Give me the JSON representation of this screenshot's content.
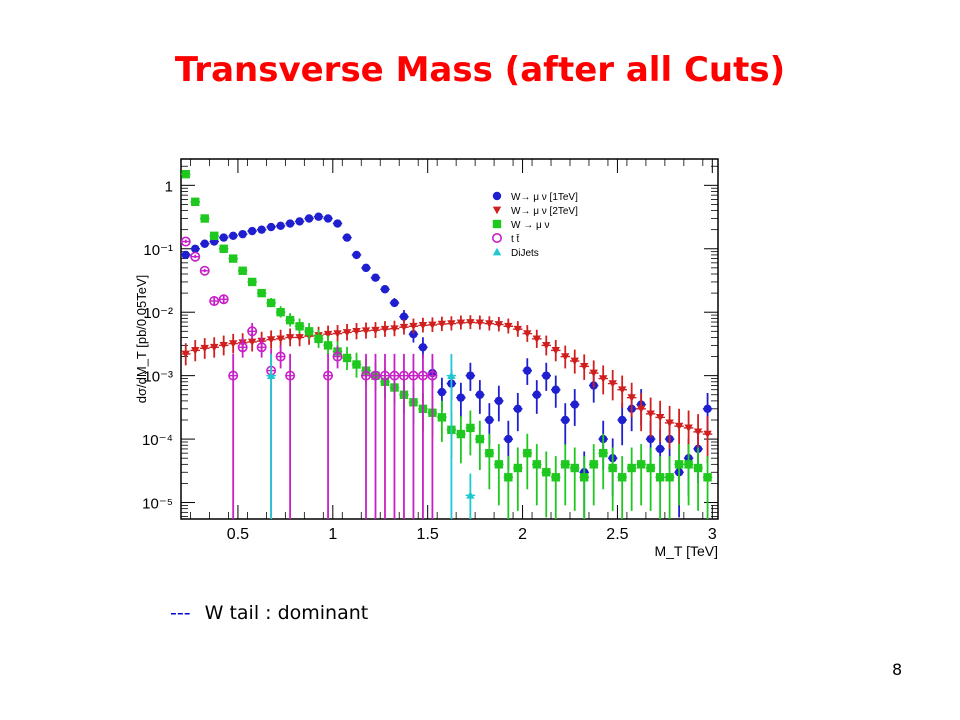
{
  "slide": {
    "title": "Transverse Mass (after all Cuts)",
    "footnote_dashes": "---",
    "footnote_text": "W tail : dominant",
    "page_number": "8"
  },
  "chart_data": {
    "type": "scatter",
    "title": "",
    "xlabel": "M_T [TeV]",
    "ylabel": "dσ/dM_T [pb/0.05TeV]",
    "xlim": [
      0.2,
      3.03
    ],
    "ylim": [
      5.5e-06,
      2.6
    ],
    "yscale": "log",
    "xticks": [
      0.5,
      1,
      1.5,
      2,
      2.5,
      3
    ],
    "xtick_labels": [
      "0.5",
      "1",
      "1.5",
      "2",
      "2.5",
      "3"
    ],
    "yticks": [
      1,
      0.1,
      0.01,
      0.001,
      0.0001,
      1e-05
    ],
    "ytick_labels": [
      "1",
      "10⁻¹",
      "10⁻²",
      "10⁻³",
      "10⁻⁴",
      "10⁻⁵"
    ],
    "grid": false,
    "legend_position": "top-right",
    "series": [
      {
        "name": "W→ μ ν [1TeV]",
        "legend_label": "W→ μ ν [1TeV]",
        "color": "#1f1fd0",
        "marker": "circle",
        "x": [
          0.225,
          0.275,
          0.325,
          0.375,
          0.425,
          0.475,
          0.525,
          0.575,
          0.625,
          0.675,
          0.725,
          0.775,
          0.825,
          0.875,
          0.925,
          0.975,
          1.025,
          1.075,
          1.125,
          1.175,
          1.225,
          1.275,
          1.325,
          1.375,
          1.425,
          1.475,
          1.525,
          1.575,
          1.625,
          1.675,
          1.725,
          1.775,
          1.825,
          1.875,
          1.925,
          1.975,
          2.025,
          2.075,
          2.125,
          2.175,
          2.225,
          2.275,
          2.325,
          2.375,
          2.425,
          2.475,
          2.525,
          2.575,
          2.625,
          2.675,
          2.725,
          2.775,
          2.825,
          2.875,
          2.925,
          2.975
        ],
        "y": [
          0.08,
          0.1,
          0.12,
          0.13,
          0.15,
          0.16,
          0.17,
          0.19,
          0.2,
          0.22,
          0.23,
          0.25,
          0.27,
          0.3,
          0.32,
          0.3,
          0.25,
          0.15,
          0.08,
          0.05,
          0.035,
          0.023,
          0.014,
          0.0085,
          0.0045,
          0.0028,
          0.0011,
          0.00055,
          0.00075,
          0.00045,
          0.001,
          0.0005,
          0.0002,
          0.0004,
          0.0001,
          0.0003,
          0.0012,
          0.0005,
          0.001,
          0.0006,
          0.0002,
          0.00035,
          3e-05,
          0.0007,
          0.0001,
          5e-05,
          0.0002,
          0.0003,
          0.00035,
          0.0001,
          7e-05,
          0.0001,
          3e-05,
          5e-05,
          7e-05,
          0.0003
        ]
      },
      {
        "name": "W→ μ ν [2TeV]",
        "legend_label": "W→ μ ν [2TeV]",
        "color": "#d01f1f",
        "marker": "triangle-down",
        "x": [
          0.225,
          0.275,
          0.325,
          0.375,
          0.425,
          0.475,
          0.525,
          0.575,
          0.625,
          0.675,
          0.725,
          0.775,
          0.825,
          0.875,
          0.925,
          0.975,
          1.025,
          1.075,
          1.125,
          1.175,
          1.225,
          1.275,
          1.325,
          1.375,
          1.425,
          1.475,
          1.525,
          1.575,
          1.625,
          1.675,
          1.725,
          1.775,
          1.825,
          1.875,
          1.925,
          1.975,
          2.025,
          2.075,
          2.125,
          2.175,
          2.225,
          2.275,
          2.325,
          2.375,
          2.425,
          2.475,
          2.525,
          2.575,
          2.625,
          2.675,
          2.725,
          2.775,
          2.825,
          2.875,
          2.925,
          2.975
        ],
        "y": [
          0.0022,
          0.0025,
          0.0027,
          0.0028,
          0.003,
          0.0032,
          0.0033,
          0.0034,
          0.0035,
          0.0037,
          0.0038,
          0.004,
          0.004,
          0.0042,
          0.0043,
          0.0045,
          0.0046,
          0.0048,
          0.005,
          0.0051,
          0.0052,
          0.0054,
          0.0055,
          0.0058,
          0.006,
          0.0062,
          0.0063,
          0.0065,
          0.0066,
          0.0068,
          0.0069,
          0.0068,
          0.0066,
          0.0064,
          0.006,
          0.0054,
          0.0046,
          0.0038,
          0.003,
          0.0025,
          0.002,
          0.0017,
          0.0014,
          0.0011,
          0.0009,
          0.00075,
          0.0006,
          0.00045,
          0.0003,
          0.00025,
          0.00022,
          0.00018,
          0.00016,
          0.00015,
          0.00013,
          0.00012
        ]
      },
      {
        "name": "W → μ ν",
        "legend_label": "W → μ ν",
        "color": "#1fc81f",
        "marker": "square",
        "x": [
          0.225,
          0.275,
          0.325,
          0.375,
          0.425,
          0.475,
          0.525,
          0.575,
          0.625,
          0.675,
          0.725,
          0.775,
          0.825,
          0.875,
          0.925,
          0.975,
          1.025,
          1.075,
          1.125,
          1.175,
          1.225,
          1.275,
          1.325,
          1.375,
          1.425,
          1.475,
          1.525,
          1.575,
          1.625,
          1.675,
          1.725,
          1.775,
          1.825,
          1.875,
          1.925,
          1.975,
          2.025,
          2.075,
          2.125,
          2.175,
          2.225,
          2.275,
          2.325,
          2.375,
          2.425,
          2.475,
          2.525,
          2.575,
          2.625,
          2.675,
          2.725,
          2.775,
          2.825,
          2.875,
          2.925,
          2.975
        ],
        "y": [
          1.5,
          0.55,
          0.3,
          0.16,
          0.1,
          0.07,
          0.045,
          0.03,
          0.02,
          0.014,
          0.01,
          0.0075,
          0.006,
          0.005,
          0.0038,
          0.003,
          0.0024,
          0.0019,
          0.0015,
          0.0012,
          0.001,
          0.0008,
          0.00065,
          0.0005,
          0.00038,
          0.0003,
          0.00026,
          0.00022,
          0.00014,
          0.00012,
          0.00015,
          0.0001,
          6e-05,
          4e-05,
          2.5e-05,
          3.5e-05,
          6e-05,
          4e-05,
          3e-05,
          2.5e-05,
          4e-05,
          3.5e-05,
          2.5e-05,
          4e-05,
          6e-05,
          3.5e-05,
          2.5e-05,
          3.5e-05,
          4e-05,
          3.5e-05,
          2.5e-05,
          2.5e-05,
          4e-05,
          4e-05,
          3.5e-05,
          2.5e-05
        ]
      },
      {
        "name": "t t̄",
        "legend_label": "t t̄",
        "color": "#c81fc8",
        "marker": "open-circle",
        "x": [
          0.225,
          0.275,
          0.325,
          0.375,
          0.425,
          0.475,
          0.525,
          0.575,
          0.625,
          0.675,
          0.725,
          0.775,
          0.975,
          1.025,
          1.175,
          1.225,
          1.275,
          1.325,
          1.375,
          1.425,
          1.475,
          1.525
        ],
        "y": [
          0.13,
          0.075,
          0.045,
          0.015,
          0.016,
          0.001,
          0.0028,
          0.005,
          0.0028,
          0.0012,
          0.002,
          0.001,
          0.001,
          0.002,
          0.001,
          0.001,
          0.001,
          0.001,
          0.001,
          0.001,
          0.001,
          0.001
        ]
      },
      {
        "name": "DiJets",
        "legend_label": "DiJets",
        "color": "#1fc8d0",
        "marker": "triangle-up",
        "x": [
          0.675,
          1.625,
          1.725
        ],
        "y": [
          0.001,
          0.001,
          1.3e-05
        ]
      }
    ]
  }
}
